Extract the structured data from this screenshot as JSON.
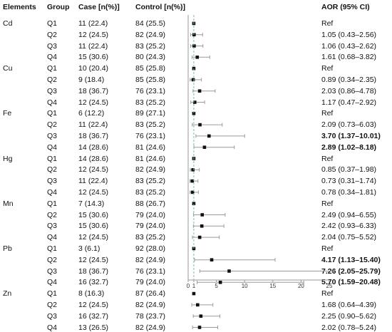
{
  "chart_data": {
    "type": "forest",
    "headers": {
      "elements": "Elements",
      "group": "Group",
      "case": "Case [n(%)]",
      "control": "Control [n(%)]",
      "aor": "AOR (95% CI)"
    },
    "x_ticks": [
      "0",
      "1",
      "5",
      "10",
      "15",
      "20",
      "25"
    ],
    "xlim": [
      0,
      25
    ],
    "reference_line": 1,
    "colors": {
      "marker": "#111111",
      "ci": "#9a9a9a",
      "axis": "#9a9a9a",
      "refline": "#7fbf9a"
    },
    "elements": [
      {
        "name": "Cd",
        "rows": [
          {
            "group": "Q1",
            "case": "11 (22.4)",
            "control": "84 (25.5)",
            "aor_text": "Ref",
            "est": 1,
            "lo": null,
            "hi": null,
            "bold": false
          },
          {
            "group": "Q2",
            "case": "12 (24.5)",
            "control": "82 (24.9)",
            "aor_text": "1.05 (0.43–2.56)",
            "est": 1.05,
            "lo": 0.43,
            "hi": 2.56,
            "bold": false
          },
          {
            "group": "Q3",
            "case": "11 (22.4)",
            "control": "83 (25.2)",
            "aor_text": "1.06 (0.43–2.62)",
            "est": 1.06,
            "lo": 0.43,
            "hi": 2.62,
            "bold": false
          },
          {
            "group": "Q4",
            "case": "15 (30.6)",
            "control": "80 (24.3)",
            "aor_text": "1.61 (0.68–3.82)",
            "est": 1.61,
            "lo": 0.68,
            "hi": 3.82,
            "bold": false
          }
        ]
      },
      {
        "name": "Cu",
        "rows": [
          {
            "group": "Q1",
            "case": "10 (20.4)",
            "control": "85 (25.8)",
            "aor_text": "Ref",
            "est": 1,
            "lo": null,
            "hi": null,
            "bold": false
          },
          {
            "group": "Q2",
            "case": "9 (18.4)",
            "control": "85 (25.8)",
            "aor_text": "0.89 (0.34–2.35)",
            "est": 0.89,
            "lo": 0.34,
            "hi": 2.35,
            "bold": false
          },
          {
            "group": "Q3",
            "case": "18 (36.7)",
            "control": "76 (23.1)",
            "aor_text": "2.03 (0.86–4.78)",
            "est": 2.03,
            "lo": 0.86,
            "hi": 4.78,
            "bold": false
          },
          {
            "group": "Q4",
            "case": "12 (24.5)",
            "control": "83 (25.2)",
            "aor_text": "1.17 (0.47–2.92)",
            "est": 1.17,
            "lo": 0.47,
            "hi": 2.92,
            "bold": false
          }
        ]
      },
      {
        "name": "Fe",
        "rows": [
          {
            "group": "Q1",
            "case": "6 (12.2)",
            "control": "89 (27.1)",
            "aor_text": "Ref",
            "est": 1,
            "lo": null,
            "hi": null,
            "bold": false
          },
          {
            "group": "Q2",
            "case": "11 (22.4)",
            "control": "83 (25.2)",
            "aor_text": "2.09 (0.73–6.03)",
            "est": 2.09,
            "lo": 0.73,
            "hi": 6.03,
            "bold": false
          },
          {
            "group": "Q3",
            "case": "18 (36.7)",
            "control": "76 (23.1)",
            "aor_text": "3.70 (1.37–10.01)",
            "est": 3.7,
            "lo": 1.37,
            "hi": 10.01,
            "bold": true
          },
          {
            "group": "Q4",
            "case": "14 (28.6)",
            "control": "81 (24.6)",
            "aor_text": "2.89 (1.02–8.18)",
            "est": 2.89,
            "lo": 1.02,
            "hi": 8.18,
            "bold": true
          }
        ]
      },
      {
        "name": "Hg",
        "rows": [
          {
            "group": "Q1",
            "case": "14 (28.6)",
            "control": "81 (24.6)",
            "aor_text": "Ref",
            "est": 1,
            "lo": null,
            "hi": null,
            "bold": false
          },
          {
            "group": "Q2",
            "case": "12 (24.5)",
            "control": "82 (24.9)",
            "aor_text": "0.85 (0.37–1.98)",
            "est": 0.85,
            "lo": 0.37,
            "hi": 1.98,
            "bold": false
          },
          {
            "group": "Q3",
            "case": "11 (22.4)",
            "control": "83 (25.2)",
            "aor_text": "0.73 (0.31–1.74)",
            "est": 0.73,
            "lo": 0.31,
            "hi": 1.74,
            "bold": false
          },
          {
            "group": "Q4",
            "case": "12 (24.5)",
            "control": "83 (25.2)",
            "aor_text": "0.78 (0.34–1.81)",
            "est": 0.78,
            "lo": 0.34,
            "hi": 1.81,
            "bold": false
          }
        ]
      },
      {
        "name": "Mn",
        "rows": [
          {
            "group": "Q1",
            "case": "7 (14.3)",
            "control": "88 (26.7)",
            "aor_text": "Ref",
            "est": 1,
            "lo": null,
            "hi": null,
            "bold": false
          },
          {
            "group": "Q2",
            "case": "15 (30.6)",
            "control": "79 (24.0)",
            "aor_text": "2.49 (0.94–6.55)",
            "est": 2.49,
            "lo": 0.94,
            "hi": 6.55,
            "bold": false
          },
          {
            "group": "Q3",
            "case": "15 (30.6)",
            "control": "79 (24.0)",
            "aor_text": "2.42 (0.93–6.33)",
            "est": 2.42,
            "lo": 0.93,
            "hi": 6.33,
            "bold": false
          },
          {
            "group": "Q4",
            "case": "12 (24.5)",
            "control": "83 (25.2)",
            "aor_text": "2.04 (0.75–5.52)",
            "est": 2.04,
            "lo": 0.75,
            "hi": 5.52,
            "bold": false
          }
        ]
      },
      {
        "name": "Pb",
        "rows": [
          {
            "group": "Q1",
            "case": "3 (6.1)",
            "control": "92 (28.0)",
            "aor_text": "Ref",
            "est": 1,
            "lo": null,
            "hi": null,
            "bold": false
          },
          {
            "group": "Q2",
            "case": "12 (24.5)",
            "control": "82 (24.9)",
            "aor_text": "4.17 (1.13–15.40)",
            "est": 4.17,
            "lo": 1.13,
            "hi": 15.4,
            "bold": true
          },
          {
            "group": "Q3",
            "case": "18 (36.7)",
            "control": "76 (23.1)",
            "aor_text": "7.26 (2.05–25.79)",
            "est": 7.26,
            "lo": 2.05,
            "hi": 25.79,
            "bold": true
          },
          {
            "group": "Q4",
            "case": "16 (32.7)",
            "control": "79 (24.0)",
            "aor_text": "5.70 (1.59–20.48)",
            "est": 5.7,
            "lo": 1.59,
            "hi": 20.48,
            "bold": true
          }
        ]
      },
      {
        "name": "Zn",
        "rows": [
          {
            "group": "Q1",
            "case": "8 (16.3)",
            "control": "87 (26.4)",
            "aor_text": "Ref",
            "est": 1,
            "lo": null,
            "hi": null,
            "bold": false
          },
          {
            "group": "Q2",
            "case": "12 (24.5)",
            "control": "82 (24.9)",
            "aor_text": "1.68 (0.64–4.39)",
            "est": 1.68,
            "lo": 0.64,
            "hi": 4.39,
            "bold": false
          },
          {
            "group": "Q3",
            "case": "16 (32.7)",
            "control": "78 (23.7)",
            "aor_text": "2.25 (0.90–5.62)",
            "est": 2.25,
            "lo": 0.9,
            "hi": 5.62,
            "bold": false
          },
          {
            "group": "Q4",
            "case": "13 (26.5)",
            "control": "82 (24.9)",
            "aor_text": "2.02 (0.78–5.24)",
            "est": 2.02,
            "lo": 0.78,
            "hi": 5.24,
            "bold": false
          }
        ]
      }
    ]
  }
}
